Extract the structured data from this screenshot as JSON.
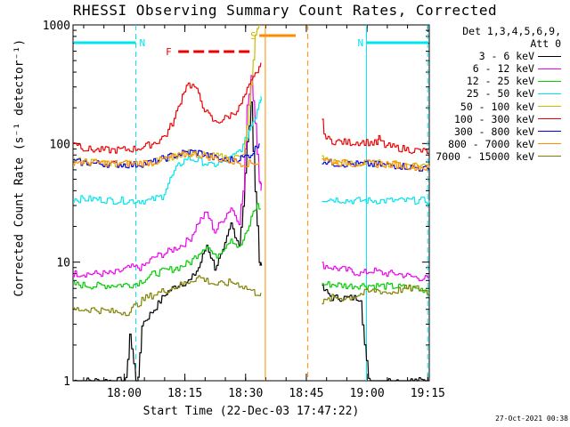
{
  "chart_data": {
    "type": "line",
    "title": "RHESSI Observing Summary Count Rates, Corrected",
    "xlabel": "Start Time (22-Dec-03 17:47:22)",
    "ylabel": "Corrected Count Rate (s⁻¹ detector⁻¹)",
    "x_unit": "minutes after 17:47:22",
    "xlim": [
      0,
      88
    ],
    "ylim": [
      1,
      1000
    ],
    "yscale": "log",
    "x_ticks": [
      {
        "label": "18:00",
        "value": 12.63
      },
      {
        "label": "18:15",
        "value": 27.63
      },
      {
        "label": "18:30",
        "value": 42.63
      },
      {
        "label": "18:45",
        "value": 57.63
      },
      {
        "label": "19:00",
        "value": 72.63
      },
      {
        "label": "19:15",
        "value": 87.63
      }
    ],
    "y_ticks": [
      {
        "label": "1",
        "value": 1
      },
      {
        "label": "10",
        "value": 10
      },
      {
        "label": "100",
        "value": 100
      },
      {
        "label": "1000",
        "value": 1000
      }
    ],
    "legend_header": [
      "Det 1,3,4,5,6,9,",
      "Att 0"
    ],
    "legend_position": "right",
    "flags": [
      {
        "label": "N",
        "color": "#00e5ee",
        "start": 0,
        "end": 15.5
      },
      {
        "label": "N",
        "color": "#00e5ee",
        "start": 72.5,
        "end": 88
      },
      {
        "label": "F",
        "color": "#ee0000",
        "start": 26,
        "end": 44
      },
      {
        "label": "S",
        "color": "#ff8c00",
        "start": 46,
        "end": 55
      }
    ],
    "marker_lines": [
      {
        "x": 15.5,
        "color": "#00e5ee",
        "style": "dashed"
      },
      {
        "x": 72.5,
        "color": "#00e5ee",
        "style": "solid"
      },
      {
        "x": 87.6,
        "color": "#00e5ee",
        "style": "dashed"
      },
      {
        "x": 47.5,
        "color": "#ff8c00",
        "style": "solid"
      },
      {
        "x": 58.0,
        "color": "#ff8c00",
        "style": "dashed"
      }
    ],
    "gaps": [
      [
        46.5,
        61.5
      ]
    ],
    "series": [
      {
        "name": "3 - 6 keV",
        "color": "#000000",
        "points": [
          [
            0,
            1
          ],
          [
            13,
            1
          ],
          [
            14,
            2.5
          ],
          [
            15.5,
            1
          ],
          [
            16,
            1
          ],
          [
            17,
            3
          ],
          [
            20,
            4
          ],
          [
            23,
            5.5
          ],
          [
            26,
            6.5
          ],
          [
            29,
            7
          ],
          [
            31,
            9
          ],
          [
            33,
            14
          ],
          [
            35,
            9
          ],
          [
            37,
            12
          ],
          [
            39,
            21
          ],
          [
            41,
            14
          ],
          [
            42,
            30
          ],
          [
            43,
            100
          ],
          [
            44,
            210
          ],
          [
            45,
            40
          ],
          [
            46,
            10
          ],
          [
            46.4,
            10
          ]
        ],
        "after": [
          [
            61.5,
            6
          ],
          [
            64,
            5
          ],
          [
            68,
            5
          ],
          [
            71,
            5
          ],
          [
            72,
            2
          ],
          [
            73,
            1
          ],
          [
            75,
            1
          ],
          [
            88,
            1
          ]
        ]
      },
      {
        "name": "6 - 12 keV",
        "color": "#ee00ee",
        "points": [
          [
            0,
            8
          ],
          [
            5,
            8
          ],
          [
            10,
            8
          ],
          [
            14,
            9
          ],
          [
            17,
            9
          ],
          [
            20,
            11
          ],
          [
            23,
            12
          ],
          [
            25,
            13
          ],
          [
            27,
            14
          ],
          [
            29,
            16
          ],
          [
            31,
            22
          ],
          [
            33,
            26
          ],
          [
            35,
            18
          ],
          [
            37,
            23
          ],
          [
            39,
            29
          ],
          [
            41,
            22
          ],
          [
            42,
            40
          ],
          [
            43,
            200
          ],
          [
            44,
            380
          ],
          [
            45,
            150
          ],
          [
            46,
            50
          ],
          [
            46.4,
            40
          ]
        ],
        "after": [
          [
            61.5,
            9.5
          ],
          [
            64,
            9
          ],
          [
            68,
            8.5
          ],
          [
            71,
            8
          ],
          [
            74,
            8.5
          ],
          [
            77,
            8
          ],
          [
            80,
            8
          ],
          [
            84,
            7.5
          ],
          [
            88,
            7.2
          ]
        ]
      },
      {
        "name": "12 - 25 keV",
        "color": "#00cc00",
        "points": [
          [
            0,
            6.5
          ],
          [
            5,
            6.3
          ],
          [
            10,
            6.4
          ],
          [
            15,
            6.5
          ],
          [
            17,
            7
          ],
          [
            20,
            8
          ],
          [
            23,
            8.5
          ],
          [
            26,
            9
          ],
          [
            29,
            10
          ],
          [
            31,
            12
          ],
          [
            33,
            14
          ],
          [
            35,
            11
          ],
          [
            37,
            13
          ],
          [
            39,
            16
          ],
          [
            41,
            13
          ],
          [
            43,
            18
          ],
          [
            44.5,
            27
          ],
          [
            45.5,
            30
          ],
          [
            46.4,
            28
          ]
        ],
        "after": [
          [
            61.5,
            6.5
          ],
          [
            64,
            6.5
          ],
          [
            68,
            6.3
          ],
          [
            72,
            6.4
          ],
          [
            76,
            6.3
          ],
          [
            80,
            6.2
          ],
          [
            84,
            6.0
          ],
          [
            88,
            5.8
          ]
        ]
      },
      {
        "name": "25 - 50 keV",
        "color": "#00e5ee",
        "points": [
          [
            0,
            34
          ],
          [
            5,
            34
          ],
          [
            10,
            33
          ],
          [
            15,
            33
          ],
          [
            19,
            33
          ],
          [
            22,
            36
          ],
          [
            24,
            50
          ],
          [
            26,
            65
          ],
          [
            28,
            75
          ],
          [
            30,
            73
          ],
          [
            32,
            70
          ],
          [
            34,
            65
          ],
          [
            36,
            68
          ],
          [
            38,
            72
          ],
          [
            40,
            80
          ],
          [
            42,
            95
          ],
          [
            43.5,
            130
          ],
          [
            45,
            170
          ],
          [
            46,
            230
          ],
          [
            46.4,
            250
          ]
        ],
        "after": [
          [
            61.5,
            34
          ],
          [
            64,
            34
          ],
          [
            68,
            33
          ],
          [
            72,
            33
          ],
          [
            76,
            33
          ],
          [
            80,
            33
          ],
          [
            84,
            33
          ],
          [
            88,
            33
          ]
        ]
      },
      {
        "name": "50 - 100 keV",
        "color": "#ccbb00",
        "points": [
          [
            0,
            72
          ],
          [
            5,
            70
          ],
          [
            10,
            68
          ],
          [
            15,
            67
          ],
          [
            20,
            70
          ],
          [
            24,
            76
          ],
          [
            27,
            82
          ],
          [
            29,
            84
          ],
          [
            31,
            83
          ],
          [
            33,
            80
          ],
          [
            35,
            78
          ],
          [
            38,
            76
          ],
          [
            40,
            76
          ],
          [
            42,
            85
          ],
          [
            43,
            140
          ],
          [
            44,
            300
          ],
          [
            45,
            800
          ],
          [
            46,
            1200
          ]
        ],
        "after": [
          [
            61.5,
            75
          ],
          [
            64,
            70
          ],
          [
            68,
            68
          ],
          [
            72,
            68
          ],
          [
            76,
            68
          ],
          [
            80,
            67
          ],
          [
            84,
            66
          ],
          [
            88,
            65
          ]
        ]
      },
      {
        "name": "100 - 300 keV",
        "color": "#ee0000",
        "points": [
          [
            0,
            105
          ],
          [
            3,
            90
          ],
          [
            6,
            88
          ],
          [
            10,
            88
          ],
          [
            15,
            90
          ],
          [
            18,
            95
          ],
          [
            21,
            105
          ],
          [
            23,
            120
          ],
          [
            25,
            160
          ],
          [
            26.5,
            230
          ],
          [
            28,
            320
          ],
          [
            30,
            300
          ],
          [
            31.5,
            230
          ],
          [
            33,
            180
          ],
          [
            35,
            150
          ],
          [
            37,
            160
          ],
          [
            39,
            175
          ],
          [
            41,
            200
          ],
          [
            43,
            280
          ],
          [
            45,
            380
          ],
          [
            46.4,
            480
          ]
        ],
        "after": [
          [
            61.5,
            150
          ],
          [
            62.5,
            110
          ],
          [
            64,
            105
          ],
          [
            68,
            102
          ],
          [
            72,
            103
          ],
          [
            75,
            100
          ],
          [
            75.5,
            110
          ],
          [
            77,
            96
          ],
          [
            80,
            92
          ],
          [
            84,
            88
          ],
          [
            88,
            85
          ]
        ]
      },
      {
        "name": "300 - 800 keV",
        "color": "#0000ee",
        "points": [
          [
            0,
            70
          ],
          [
            5,
            68
          ],
          [
            10,
            67
          ],
          [
            15,
            66
          ],
          [
            20,
            70
          ],
          [
            24,
            78
          ],
          [
            27,
            83
          ],
          [
            29,
            85
          ],
          [
            31,
            84
          ],
          [
            33,
            80
          ],
          [
            35,
            75
          ],
          [
            38,
            72
          ],
          [
            40,
            74
          ],
          [
            42,
            76
          ],
          [
            44,
            82
          ],
          [
            46,
            100
          ]
        ],
        "after": [
          [
            61.5,
            72
          ],
          [
            64,
            68
          ],
          [
            68,
            67
          ],
          [
            72,
            67
          ],
          [
            76,
            66
          ],
          [
            80,
            65
          ],
          [
            84,
            63
          ],
          [
            88,
            60
          ]
        ]
      },
      {
        "name": "800 - 7000 keV",
        "color": "#ff8c00",
        "points": [
          [
            0,
            70
          ],
          [
            5,
            69
          ],
          [
            10,
            68
          ],
          [
            15,
            68
          ],
          [
            20,
            70
          ],
          [
            24,
            76
          ],
          [
            27,
            80
          ],
          [
            29,
            82
          ],
          [
            31,
            81
          ],
          [
            33,
            78
          ],
          [
            35,
            75
          ],
          [
            38,
            72
          ],
          [
            40,
            70
          ],
          [
            42,
            68
          ],
          [
            44,
            68
          ],
          [
            46,
            70
          ]
        ],
        "after": [
          [
            61.5,
            75
          ],
          [
            64,
            70
          ],
          [
            68,
            68
          ],
          [
            72,
            68
          ],
          [
            76,
            67
          ],
          [
            80,
            66
          ],
          [
            84,
            64
          ],
          [
            88,
            62
          ]
        ]
      },
      {
        "name": "7000 - 15000 keV",
        "color": "#808000",
        "points": [
          [
            0,
            4
          ],
          [
            5,
            4
          ],
          [
            10,
            3.8
          ],
          [
            14,
            3.8
          ],
          [
            15,
            4.2
          ],
          [
            18,
            5
          ],
          [
            21,
            5.5
          ],
          [
            24,
            6
          ],
          [
            27,
            6.5
          ],
          [
            29,
            7
          ],
          [
            31,
            7.5
          ],
          [
            33,
            7
          ],
          [
            35,
            6.5
          ],
          [
            37,
            6.5
          ],
          [
            39,
            6.8
          ],
          [
            41,
            6.5
          ],
          [
            43,
            6
          ],
          [
            45,
            5.5
          ],
          [
            46.4,
            5.5
          ]
        ],
        "after": [
          [
            61.5,
            4.5
          ],
          [
            64,
            5
          ],
          [
            68,
            5
          ],
          [
            72,
            5.5
          ],
          [
            75,
            5.8
          ],
          [
            78,
            5.5
          ],
          [
            82,
            6
          ],
          [
            85,
            6
          ],
          [
            88,
            5.5
          ]
        ]
      }
    ]
  },
  "footer_date": "27-Oct-2021 00:38"
}
